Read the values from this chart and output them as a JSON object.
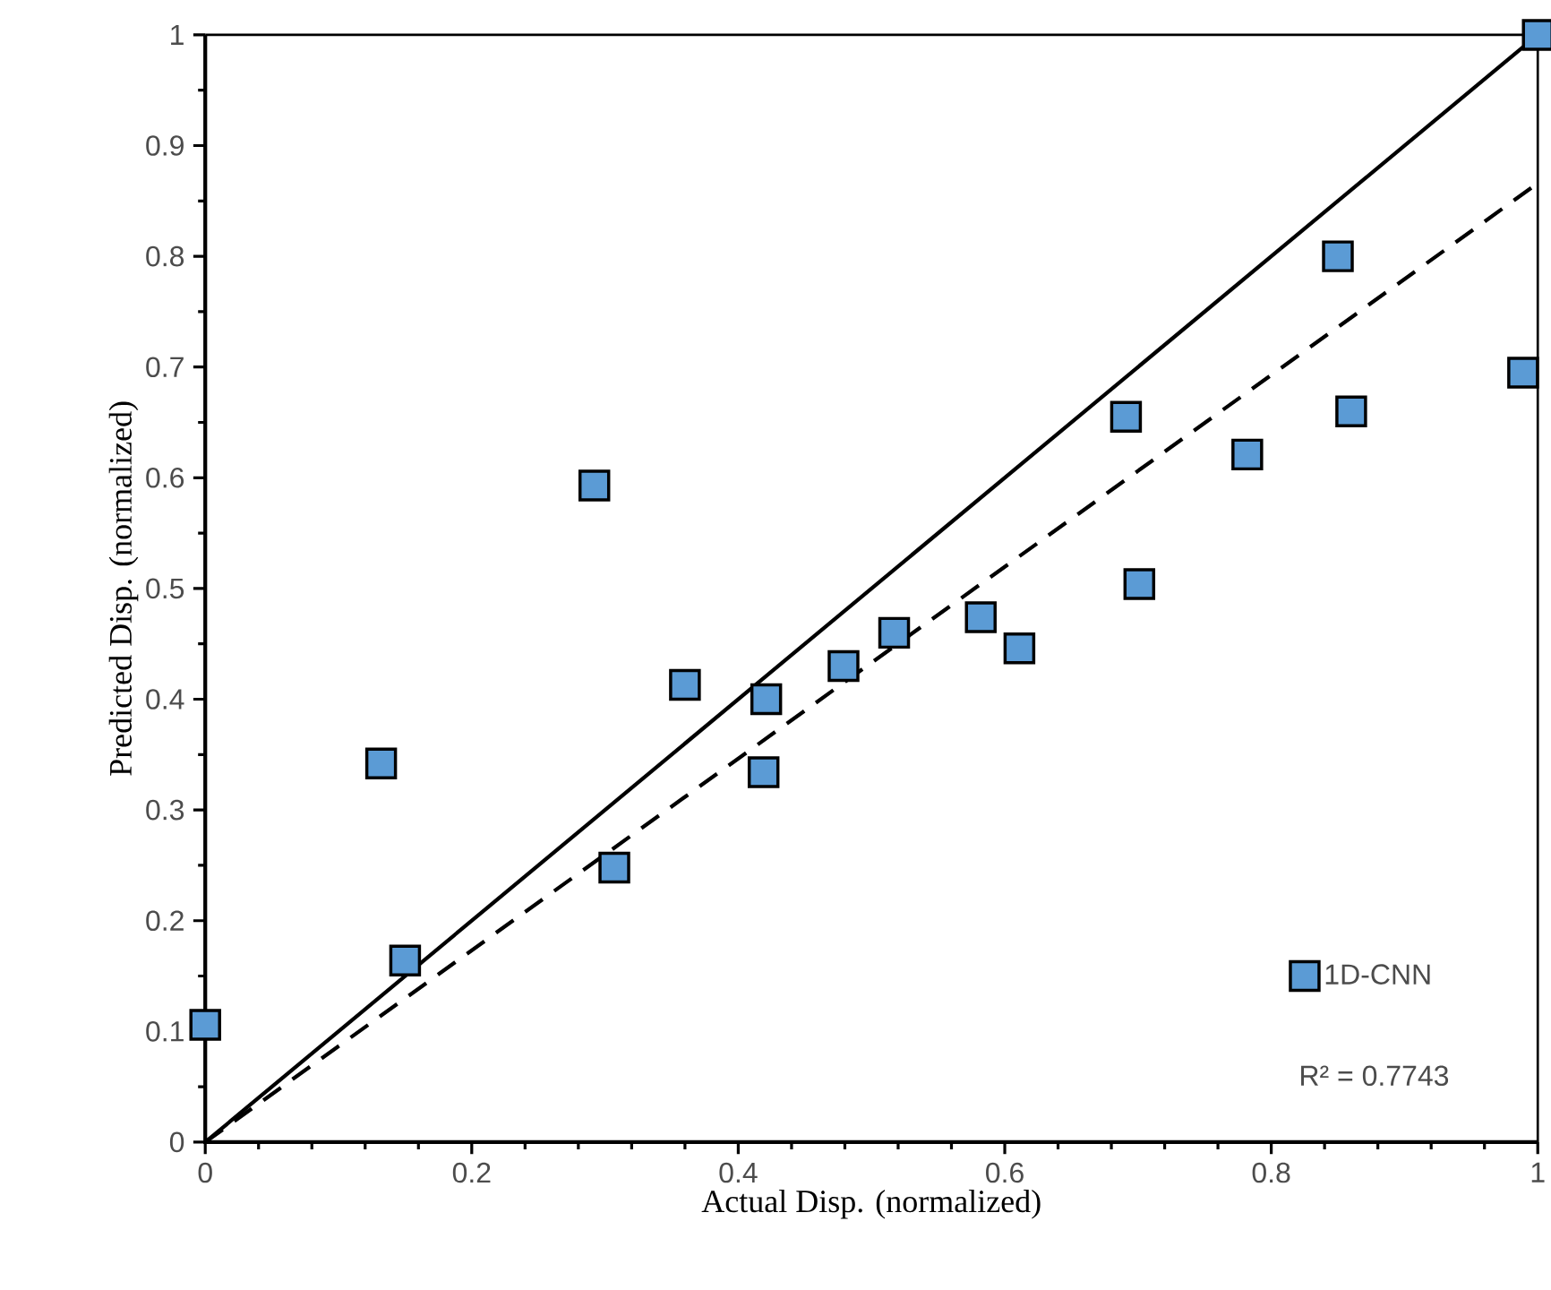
{
  "chart_data": {
    "type": "scatter",
    "xlabel": "Actual Disp. (normalized)",
    "ylabel": "Predicted Disp. (normalized)",
    "xlim": [
      0,
      1
    ],
    "ylim": [
      0,
      1
    ],
    "xticks": [
      0,
      0.2,
      0.4,
      0.6,
      0.8,
      1
    ],
    "yticks": [
      0,
      0.1,
      0.2,
      0.3,
      0.4,
      0.5,
      0.6,
      0.7,
      0.8,
      0.9,
      1
    ],
    "grid": false,
    "legend": "bottom right",
    "annotations": [
      "R² = 0.7743"
    ],
    "series": [
      {
        "name": "1D-CNN",
        "marker": "square",
        "color": "#5b9bd5",
        "x": [
          0,
          0.132,
          0.15,
          0.292,
          0.307,
          0.36,
          0.421,
          0.419,
          0.479,
          0.517,
          0.582,
          0.611,
          0.691,
          0.701,
          0.782,
          0.85,
          0.86,
          0.989,
          1
        ],
        "values": [
          0.106,
          0.342,
          0.164,
          0.593,
          0.248,
          0.413,
          0.4,
          0.334,
          0.43,
          0.46,
          0.474,
          0.446,
          0.655,
          0.504,
          0.621,
          0.8,
          0.66,
          0.695,
          1
        ]
      },
      {
        "type": "line",
        "color": "#000000",
        "line_style": "solid",
        "x": [
          0,
          1
        ],
        "values": [
          0,
          1
        ]
      },
      {
        "type": "line",
        "color": "#000000",
        "line_style": "dashed",
        "x": [
          0,
          1
        ],
        "values": [
          0,
          0.866
        ]
      }
    ]
  }
}
